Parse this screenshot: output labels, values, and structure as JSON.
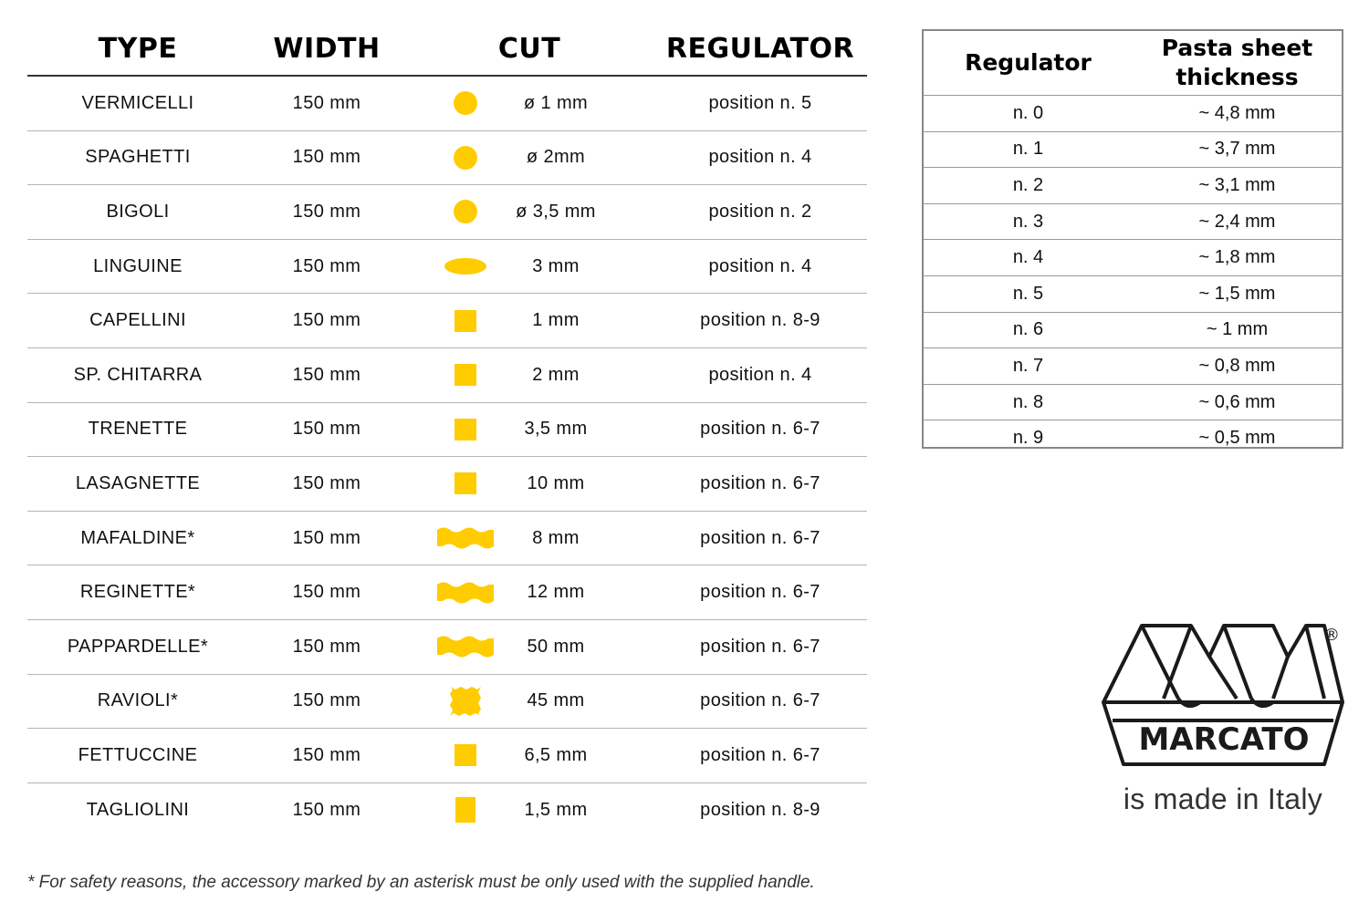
{
  "main_table": {
    "headers": {
      "type": "TYPE",
      "width": "WIDTH",
      "cut": "CUT",
      "regulator": "REGULATOR"
    },
    "rows": [
      {
        "type": "VERMICELLI",
        "width": "150 mm",
        "shape": "circle",
        "cut": "ø 1 mm",
        "regulator": "position n. 5"
      },
      {
        "type": "SPAGHETTI",
        "width": "150 mm",
        "shape": "circle",
        "cut": "ø 2mm",
        "regulator": "position n. 4"
      },
      {
        "type": "BIGOLI",
        "width": "150 mm",
        "shape": "circle",
        "cut": "ø 3,5 mm",
        "regulator": "position n. 2"
      },
      {
        "type": "LINGUINE",
        "width": "150 mm",
        "shape": "ellipse",
        "cut": "3 mm",
        "regulator": "position n. 4"
      },
      {
        "type": "CAPELLINI",
        "width": "150 mm",
        "shape": "square",
        "cut": "1 mm",
        "regulator": "position n. 8-9"
      },
      {
        "type": "SP. CHITARRA",
        "width": "150 mm",
        "shape": "square",
        "cut": "2 mm",
        "regulator": "position n. 4"
      },
      {
        "type": "TRENETTE",
        "width": "150 mm",
        "shape": "square",
        "cut": "3,5 mm",
        "regulator": "position n. 6-7"
      },
      {
        "type": "LASAGNETTE",
        "width": "150 mm",
        "shape": "square",
        "cut": "10 mm",
        "regulator": "position n. 6-7"
      },
      {
        "type": "MAFALDINE*",
        "width": "150 mm",
        "shape": "wavy",
        "cut": "8 mm",
        "regulator": "position n. 6-7"
      },
      {
        "type": "REGINETTE*",
        "width": "150 mm",
        "shape": "wavy",
        "cut": "12 mm",
        "regulator": "position n. 6-7"
      },
      {
        "type": "PAPPARDELLE*",
        "width": "150 mm",
        "shape": "wavy",
        "cut": "50 mm",
        "regulator": "position n. 6-7"
      },
      {
        "type": "RAVIOLI*",
        "width": "150 mm",
        "shape": "ravioli",
        "cut": "45 mm",
        "regulator": "position n. 6-7"
      },
      {
        "type": "FETTUCCINE",
        "width": "150 mm",
        "shape": "square",
        "cut": "6,5 mm",
        "regulator": "position n. 6-7"
      },
      {
        "type": "TAGLIOLINI",
        "width": "150 mm",
        "shape": "tall-rect",
        "cut": "1,5 mm",
        "regulator": "position n. 8-9"
      }
    ]
  },
  "thickness_table": {
    "headers": {
      "regulator": "Regulator",
      "thickness_line1": "Pasta sheet",
      "thickness_line2": "thickness"
    },
    "rows": [
      {
        "regulator": "n. 0",
        "thickness": "~ 4,8 mm"
      },
      {
        "regulator": "n. 1",
        "thickness": "~ 3,7 mm"
      },
      {
        "regulator": "n. 2",
        "thickness": "~ 3,1 mm"
      },
      {
        "regulator": "n. 3",
        "thickness": "~ 2,4 mm"
      },
      {
        "regulator": "n. 4",
        "thickness": "~ 1,8 mm"
      },
      {
        "regulator": "n. 5",
        "thickness": "~ 1,5 mm"
      },
      {
        "regulator": "n. 6",
        "thickness": "~ 1 mm"
      },
      {
        "regulator": "n. 7",
        "thickness": "~ 0,8 mm"
      },
      {
        "regulator": "n. 8",
        "thickness": "~ 0,6 mm"
      },
      {
        "regulator": "n. 9",
        "thickness": "~ 0,5 mm"
      }
    ]
  },
  "brand": {
    "name": "MARCATO",
    "registered": "®",
    "tagline": "is made in Italy"
  },
  "footnote": "* For safety reasons, the accessory marked by an asterisk must be only used with the supplied handle.",
  "colors": {
    "shape_fill": "#FFCC00",
    "rule": "#b5b5b5",
    "header_rule": "#333333"
  }
}
